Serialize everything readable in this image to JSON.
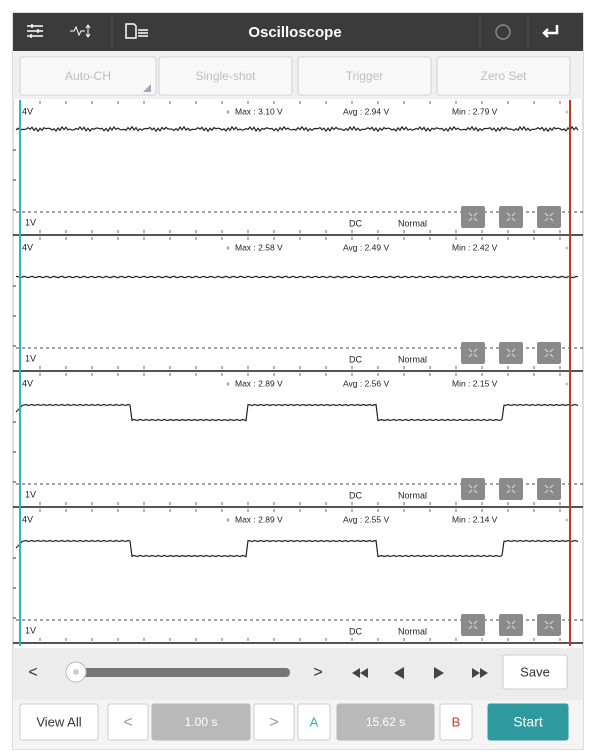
{
  "header": {
    "title": "Oscilloscope"
  },
  "toolbar": {
    "buttons": [
      "Auto-CH",
      "Single-shot",
      "Trigger",
      "Zero Set"
    ]
  },
  "channels": [
    {
      "scale_top": "4V",
      "max": "Max : 3.10 V",
      "avg": "Avg : 2.94 V",
      "min": "Min : 2.79 V",
      "scale_bottom": "1V",
      "coupling": "DC",
      "mode": "Normal"
    },
    {
      "scale_top": "4V",
      "max": "Max : 2.58 V",
      "avg": "Avg : 2.49 V",
      "min": "Min : 2.42 V",
      "scale_bottom": "1V",
      "coupling": "DC",
      "mode": "Normal"
    },
    {
      "scale_top": "4V",
      "max": "Max : 2.89 V",
      "avg": "Avg : 2.56 V",
      "min": "Min : 2.15 V",
      "scale_bottom": "1V",
      "coupling": "DC",
      "mode": "Normal"
    },
    {
      "scale_top": "4V",
      "max": "Max : 2.89 V",
      "avg": "Avg : 2.55 V",
      "min": "Min : 2.14 V",
      "scale_bottom": "1V",
      "coupling": "DC",
      "mode": "Normal"
    }
  ],
  "controls": {
    "prev": "<",
    "next": ">",
    "save": "Save",
    "view_all": "View All",
    "time_prev": "<",
    "time_div": "1.00 s",
    "time_next": ">",
    "cursor_a": "A",
    "cursor_delta": "15.62 s",
    "cursor_b": "B",
    "start": "Start"
  }
}
